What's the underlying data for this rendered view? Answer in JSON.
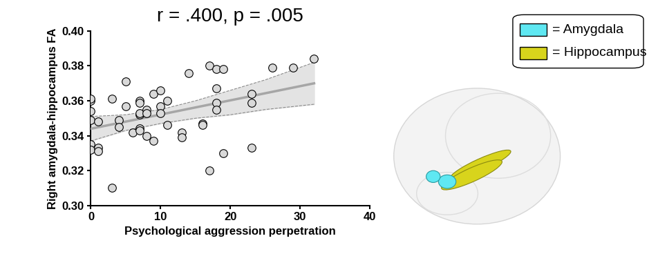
{
  "chart_data": {
    "type": "scatter",
    "title": "r = .400, p = .005",
    "x_label": "Psychological aggression perpetration",
    "y_label": "Right amygdala-hippocampus FA",
    "x": [
      0,
      0,
      0,
      0,
      0,
      0,
      1,
      1,
      1,
      3,
      3,
      4,
      4,
      5,
      5,
      6,
      7,
      7,
      7,
      7,
      7,
      7,
      8,
      8,
      8,
      9,
      9,
      10,
      10,
      10,
      11,
      11,
      13,
      13,
      14,
      16,
      16,
      17,
      17,
      18,
      18,
      18,
      18,
      19,
      19,
      23,
      23,
      23,
      26,
      29,
      32
    ],
    "values": [
      0.36,
      0.361,
      0.354,
      0.349,
      0.335,
      0.332,
      0.348,
      0.333,
      0.331,
      0.361,
      0.31,
      0.349,
      0.345,
      0.371,
      0.357,
      0.342,
      0.36,
      0.359,
      0.352,
      0.353,
      0.344,
      0.343,
      0.355,
      0.353,
      0.34,
      0.364,
      0.337,
      0.366,
      0.357,
      0.353,
      0.36,
      0.346,
      0.342,
      0.339,
      0.376,
      0.347,
      0.346,
      0.38,
      0.32,
      0.378,
      0.367,
      0.359,
      0.355,
      0.378,
      0.33,
      0.364,
      0.359,
      0.333,
      0.379,
      0.379,
      0.384
    ],
    "color": "#d9d9d9",
    "fit": {
      "x": [
        0,
        32
      ],
      "values": [
        0.344,
        0.37
      ],
      "color": "#a6a6a6"
    },
    "ci": {
      "x": [
        0,
        5,
        10,
        15,
        20,
        25,
        32
      ],
      "lower": [
        0.337,
        0.343,
        0.347,
        0.35,
        0.352,
        0.355,
        0.358
      ],
      "upper": [
        0.351,
        0.352,
        0.355,
        0.36,
        0.366,
        0.372,
        0.382
      ]
    },
    "xlim": [
      0,
      40
    ],
    "xticks": [
      0,
      10,
      20,
      30,
      40
    ],
    "ylim": [
      0.3,
      0.4
    ],
    "yticks": [
      {
        "value": 0.3,
        "label": "0.30"
      },
      0.32,
      0.34,
      0.36,
      0.38,
      {
        "value": 0.4,
        "label": "0.40"
      }
    ],
    "grid": false
  },
  "diagram": {
    "legend": [
      {
        "label": "= Amygdala",
        "color": "#5fe8f2"
      },
      {
        "label": "= Hippocampus",
        "color": "#d8d41c"
      }
    ]
  }
}
